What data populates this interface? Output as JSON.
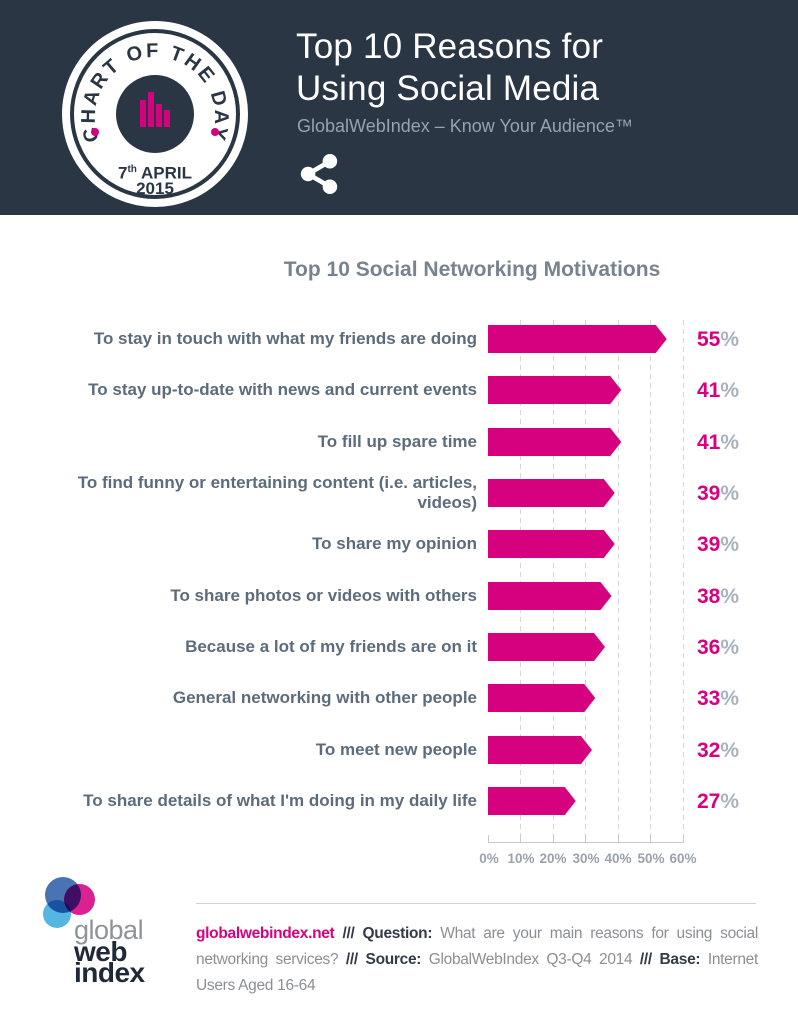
{
  "colors": {
    "header_bg": "#2b3645",
    "accent_pink": "#d6017f",
    "label_gray": "#5c6c7c",
    "title_gray": "#79838f",
    "axis_gray": "#99a2ac",
    "percent_gray": "#a9b3bd"
  },
  "header": {
    "badge": {
      "arc_text": "CHART OF THE DAY",
      "date_day": "7",
      "date_suffix": "th",
      "date_month": " APRIL",
      "date_year": "2015"
    },
    "title_line1": "Top 10 Reasons for",
    "title_line2": "Using Social Media",
    "subtitle": "GlobalWebIndex – Know Your Audience™"
  },
  "chart_data": {
    "type": "bar",
    "orientation": "horizontal",
    "title": "Top 10 Social Networking Motivations",
    "categories": [
      "To stay in touch with what my friends are doing",
      "To stay up-to-date with news and current events",
      "To fill up spare time",
      "To find funny or entertaining content (i.e. articles, videos)",
      "To share my opinion",
      "To share photos or videos with others",
      "Because a lot of my friends are on it",
      "General networking with other people",
      "To meet new people",
      "To share details of what I'm doing in my daily life"
    ],
    "values": [
      55,
      41,
      41,
      39,
      39,
      38,
      36,
      33,
      32,
      27
    ],
    "unit": "%",
    "xlim": [
      0,
      60
    ],
    "x_ticks": [
      "0%",
      "10%",
      "20%",
      "30%",
      "40%",
      "50%",
      "60%"
    ],
    "bar_color": "#d6017f",
    "grid": "vertical-dashed",
    "legend": "none"
  },
  "labels": {
    "percent_sign": "%"
  },
  "logo": {
    "line1": "global",
    "line2": "web",
    "line3": "index"
  },
  "footer": {
    "link": "globalwebindex.net",
    "separator": "///",
    "question_label": "Question:",
    "question_text": "What are your main reasons for using social networking services?",
    "source_label": "Source:",
    "source_text": "GlobalWebIndex  Q3-Q4  2014",
    "base_label": "Base:",
    "base_text": "Internet Users Aged 16-64"
  }
}
